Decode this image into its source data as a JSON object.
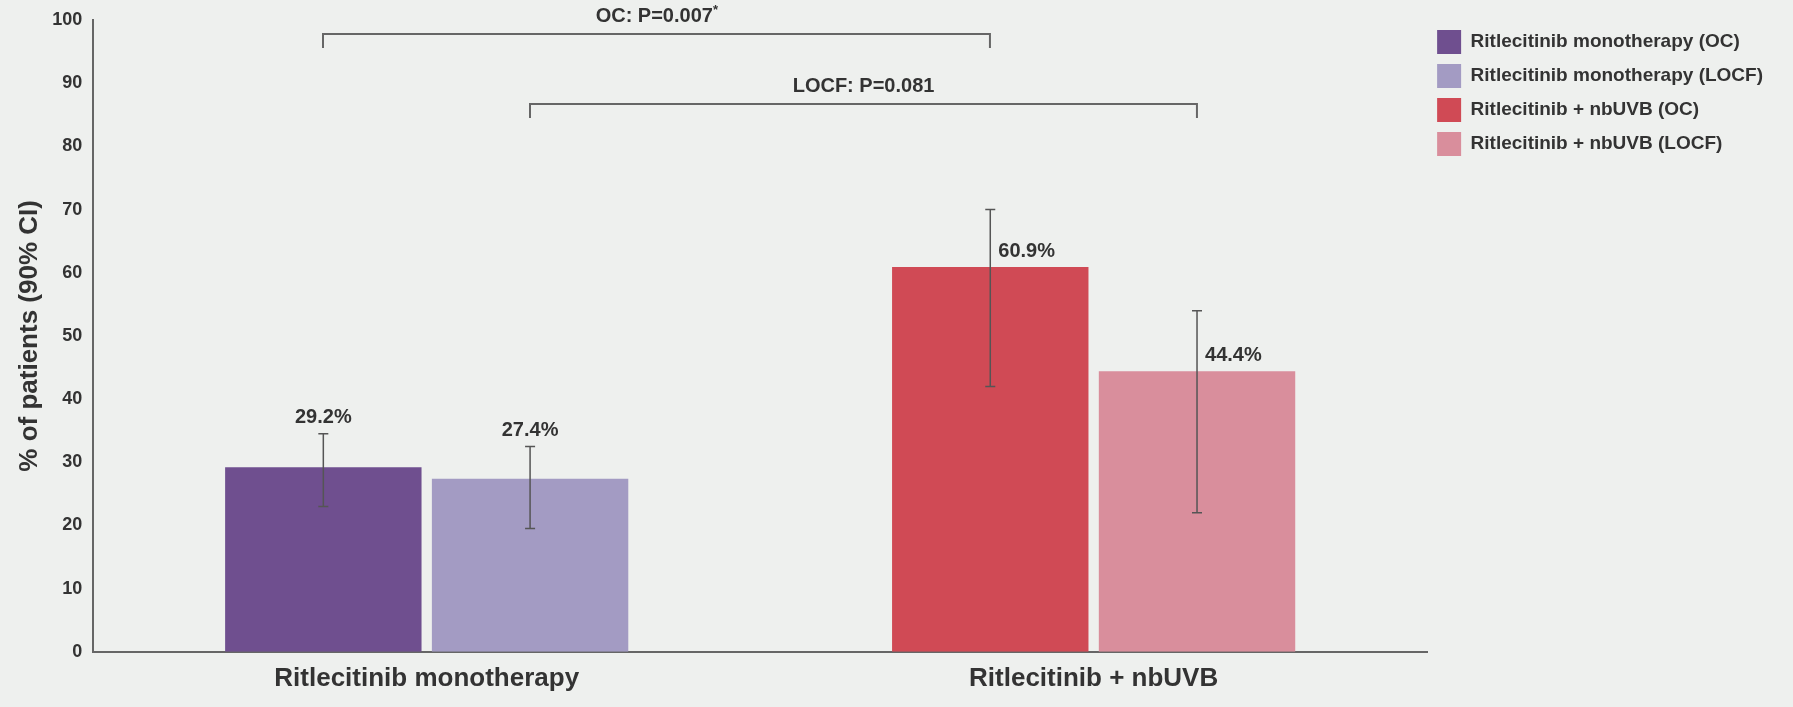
{
  "chart_data": {
    "type": "bar",
    "ylabel": "% of patients (90% CI)",
    "categories": [
      "Ritlecitinib monotherapy",
      "Ritlecitinib + nbUVB"
    ],
    "series": [
      {
        "name": "Ritlecitinib monotherapy (OC)",
        "color": "#6f4f8f",
        "values": [
          29.2,
          null
        ],
        "value_labels": [
          "29.2%",
          null
        ],
        "errors": [
          [
            23,
            34.5
          ],
          null
        ]
      },
      {
        "name": "Ritlecitinib monotherapy (LOCF)",
        "color": "#a39bc3",
        "values": [
          27.4,
          null
        ],
        "value_labels": [
          "27.4%",
          null
        ],
        "errors": [
          [
            19.5,
            32.5
          ],
          null
        ]
      },
      {
        "name": "Ritlecitinib + nbUVB (OC)",
        "color": "#d04a55",
        "values": [
          null,
          60.9
        ],
        "value_labels": [
          null,
          "60.9%"
        ],
        "errors": [
          null,
          [
            42,
            70
          ]
        ]
      },
      {
        "name": "Ritlecitinib + nbUVB (LOCF)",
        "color": "#d98e9c",
        "values": [
          null,
          44.4
        ],
        "value_labels": [
          null,
          "44.4%"
        ],
        "errors": [
          null,
          [
            22,
            54
          ]
        ]
      }
    ],
    "ylim": [
      0,
      100
    ],
    "yticks": [
      0,
      10,
      20,
      30,
      40,
      50,
      60,
      70,
      80,
      90,
      100
    ],
    "grid": false,
    "legend": "top right",
    "annotations": [
      "OC: P=0.007$^{*}$",
      "LOCF: P=0.081"
    ]
  }
}
